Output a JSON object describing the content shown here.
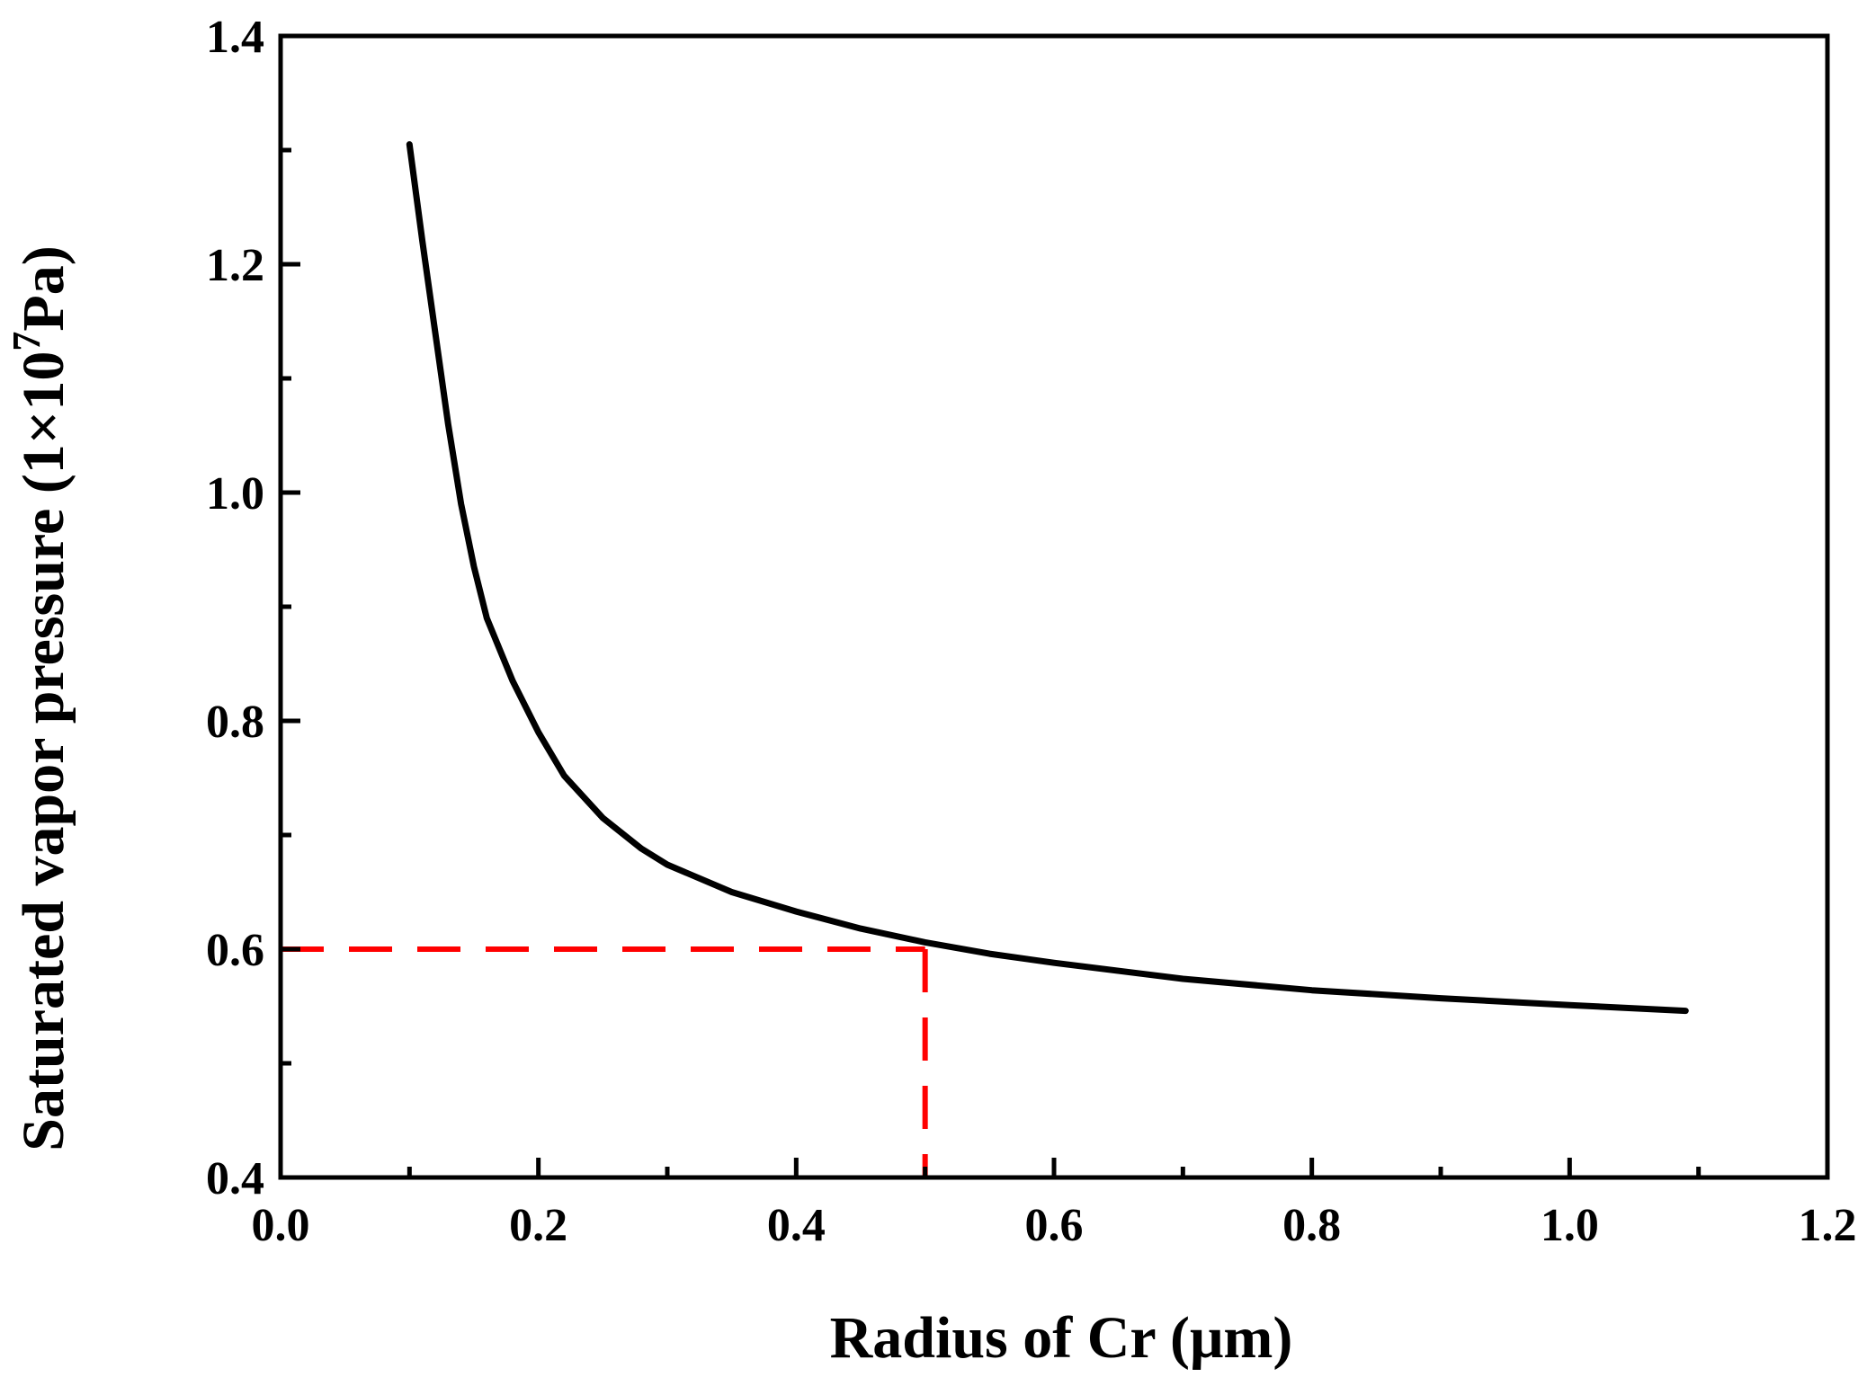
{
  "chart_data": {
    "type": "line",
    "title": "",
    "xlabel": "Radius of Cr (μm)",
    "ylabel_main": "Saturated vapor pressure (1×10",
    "ylabel_sup": "7",
    "ylabel_end": "Pa)",
    "xlim": [
      0.0,
      1.2
    ],
    "ylim": [
      0.4,
      1.4
    ],
    "xticks": [
      "0.0",
      "0.2",
      "0.4",
      "0.6",
      "0.8",
      "1.0",
      "1.2"
    ],
    "yticks": [
      "0.4",
      "0.6",
      "0.8",
      "1.0",
      "1.2",
      "1.4"
    ],
    "grid": false,
    "series": [
      {
        "name": "Saturated vapor pressure",
        "color": "#000000",
        "x": [
          0.1,
          0.11,
          0.12,
          0.13,
          0.14,
          0.15,
          0.16,
          0.18,
          0.2,
          0.22,
          0.25,
          0.28,
          0.3,
          0.35,
          0.4,
          0.45,
          0.5,
          0.55,
          0.6,
          0.7,
          0.8,
          0.9,
          1.0,
          1.09
        ],
        "y": [
          1.305,
          1.22,
          1.14,
          1.06,
          0.99,
          0.935,
          0.89,
          0.835,
          0.79,
          0.752,
          0.715,
          0.688,
          0.674,
          0.65,
          0.633,
          0.618,
          0.606,
          0.596,
          0.588,
          0.574,
          0.564,
          0.557,
          0.551,
          0.546
        ]
      }
    ],
    "reference_lines": {
      "color": "#ff0000",
      "x": 0.5,
      "y": 0.6
    }
  }
}
